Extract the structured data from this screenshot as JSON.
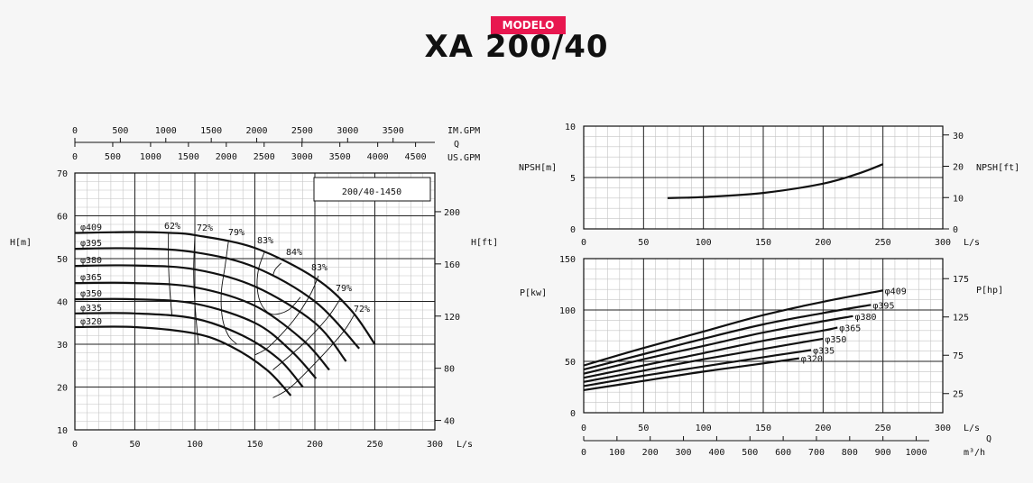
{
  "header": {
    "badge": "MODELO",
    "model": "XA 200/40"
  },
  "chart_data": [
    {
      "type": "line",
      "title": "200/40-1450",
      "xlabel": "L/s",
      "ylabel": "H[m]",
      "ylabel_right": "H[ft]",
      "xlim": [
        0,
        300
      ],
      "ylim": [
        10,
        70
      ],
      "x_ticks": [
        0,
        50,
        100,
        150,
        200,
        250,
        300
      ],
      "y_ticks": [
        10,
        20,
        30,
        40,
        50,
        60,
        70
      ],
      "y2_ticks": [
        40,
        80,
        120,
        160,
        200
      ],
      "top_axis_imgpm": {
        "label": "IM.GPM",
        "ticks": [
          0,
          500,
          1000,
          1500,
          2000,
          2500,
          3000,
          3500
        ]
      },
      "top_axis_q": "Q",
      "top_axis_usgpm": {
        "label": "US.GPM",
        "ticks": [
          0,
          500,
          1000,
          1500,
          2000,
          2500,
          3000,
          3500,
          4000,
          4500
        ]
      },
      "series": [
        {
          "name": "φ409",
          "x": [
            0,
            50,
            80,
            100,
            150,
            200,
            230,
            250
          ],
          "y": [
            56,
            56.2,
            56,
            55.5,
            52.5,
            45.5,
            38,
            30
          ]
        },
        {
          "name": "φ395",
          "x": [
            0,
            50,
            100,
            150,
            200,
            237
          ],
          "y": [
            52.3,
            52.4,
            51.5,
            48,
            40,
            29
          ]
        },
        {
          "name": "φ380",
          "x": [
            0,
            50,
            100,
            150,
            200,
            226
          ],
          "y": [
            48.3,
            48.4,
            47.5,
            43.5,
            35,
            26
          ]
        },
        {
          "name": "φ365",
          "x": [
            0,
            50,
            100,
            150,
            190,
            212
          ],
          "y": [
            44.3,
            44.3,
            43.3,
            39,
            31,
            24
          ]
        },
        {
          "name": "φ350",
          "x": [
            0,
            50,
            100,
            150,
            180,
            201
          ],
          "y": [
            40.5,
            40.5,
            39.5,
            35,
            28.5,
            22
          ]
        },
        {
          "name": "φ335",
          "x": [
            0,
            50,
            100,
            140,
            170,
            190
          ],
          "y": [
            37.2,
            37.2,
            36,
            32,
            26.5,
            20
          ]
        },
        {
          "name": "φ320",
          "x": [
            0,
            50,
            100,
            130,
            160,
            180
          ],
          "y": [
            34,
            34,
            32.5,
            29.5,
            24,
            18
          ]
        }
      ],
      "efficiency_labels": [
        "62%",
        "72%",
        "79%",
        "83%",
        "84%",
        "83%",
        "79%",
        "72%"
      ],
      "efficiency_curves": [
        {
          "x": [
            78,
            78,
            79,
            81
          ],
          "y": [
            56,
            49,
            43,
            36.5
          ]
        },
        {
          "x": [
            100,
            99,
            99.5,
            101,
            103
          ],
          "y": [
            55.3,
            48,
            42,
            36,
            30
          ]
        },
        {
          "x": [
            128,
            125,
            122,
            123,
            128,
            135
          ],
          "y": [
            54,
            48,
            42,
            36,
            32,
            30
          ]
        },
        {
          "x": [
            158,
            153,
            152,
            156,
            165,
            178,
            188
          ],
          "y": [
            51.5,
            47.5,
            43,
            39,
            37,
            38,
            41
          ]
        },
        {
          "x": [
            172,
            167,
            165
          ],
          "y": [
            49,
            47.5,
            46
          ]
        },
        {
          "x": [
            203,
            196,
            182,
            162,
            150
          ],
          "y": [
            46,
            41.5,
            35.5,
            29.5,
            27.5
          ]
        },
        {
          "x": [
            221,
            210,
            190,
            165
          ],
          "y": [
            40.5,
            36,
            30,
            24
          ]
        },
        {
          "x": [
            233,
            224,
            205,
            180,
            165
          ],
          "y": [
            37,
            33,
            27,
            20,
            17.5
          ]
        }
      ]
    },
    {
      "type": "line",
      "xlabel": "L/s",
      "ylabel": "NPSH[m]",
      "ylabel_right": "NPSH[ft]",
      "xlim": [
        0,
        300
      ],
      "ylim": [
        0,
        10
      ],
      "x_ticks": [
        0,
        50,
        100,
        150,
        200,
        250,
        300
      ],
      "y_ticks": [
        0,
        5,
        10
      ],
      "y2_ticks": [
        0,
        10,
        20,
        30
      ],
      "series": [
        {
          "name": "NPSH",
          "x": [
            70,
            100,
            150,
            200,
            230,
            250
          ],
          "y": [
            3.0,
            3.1,
            3.5,
            4.4,
            5.4,
            6.3
          ]
        }
      ]
    },
    {
      "type": "line",
      "xlabel": "L/s",
      "ylabel": "P[kw]",
      "ylabel_right": "P[hp]",
      "xlim": [
        0,
        300
      ],
      "ylim": [
        0,
        150
      ],
      "x_ticks": [
        0,
        50,
        100,
        150,
        200,
        250,
        300
      ],
      "y_ticks": [
        0,
        50,
        100,
        150
      ],
      "y2_ticks": [
        25,
        75,
        125,
        175
      ],
      "bottom_axis_q": "Q",
      "bottom_axis_m3h": {
        "label": "m³/h",
        "ticks": [
          0,
          100,
          200,
          300,
          400,
          500,
          600,
          700,
          800,
          900,
          1000
        ]
      },
      "series": [
        {
          "name": "φ409",
          "x": [
            0,
            50,
            100,
            150,
            200,
            250
          ],
          "y": [
            46,
            63,
            79,
            95,
            108,
            119
          ]
        },
        {
          "name": "φ395",
          "x": [
            0,
            50,
            100,
            150,
            200,
            240
          ],
          "y": [
            42,
            57,
            72,
            86,
            97,
            105
          ]
        },
        {
          "name": "φ380",
          "x": [
            0,
            50,
            100,
            150,
            200,
            225
          ],
          "y": [
            38,
            52,
            65,
            78,
            89,
            94
          ]
        },
        {
          "name": "φ365",
          "x": [
            0,
            50,
            100,
            150,
            200,
            212
          ],
          "y": [
            34,
            46,
            58,
            70,
            80,
            83
          ]
        },
        {
          "name": "φ350",
          "x": [
            0,
            50,
            100,
            150,
            200
          ],
          "y": [
            30,
            41,
            52,
            62,
            72
          ]
        },
        {
          "name": "φ335",
          "x": [
            0,
            50,
            100,
            150,
            190
          ],
          "y": [
            26,
            36,
            45,
            54,
            61
          ]
        },
        {
          "name": "φ320",
          "x": [
            0,
            50,
            100,
            150,
            180
          ],
          "y": [
            22,
            31,
            40,
            48,
            53
          ]
        }
      ]
    }
  ]
}
